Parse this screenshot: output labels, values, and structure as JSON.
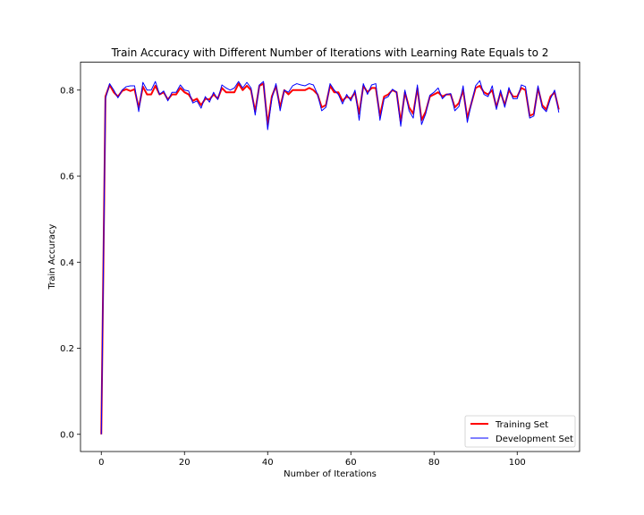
{
  "chart_data": {
    "type": "line",
    "title": "Train Accuracy with Different Number of Iterations with Learning Rate Equals to 2",
    "xlabel": "Number of Iterations",
    "ylabel": "Train Accuracy",
    "xlim": [
      -5,
      115
    ],
    "ylim": [
      -0.04,
      0.865
    ],
    "xticks": [
      0,
      20,
      40,
      60,
      80,
      100
    ],
    "yticks": [
      0.0,
      0.2,
      0.4,
      0.6,
      0.8
    ],
    "xtick_labels": [
      "0",
      "20",
      "40",
      "60",
      "80",
      "100"
    ],
    "ytick_labels": [
      "0.0",
      "0.2",
      "0.4",
      "0.6",
      "0.8"
    ],
    "grid": false,
    "legend_position": "lower-right",
    "x": [
      0,
      1,
      2,
      3,
      4,
      5,
      6,
      7,
      8,
      9,
      10,
      11,
      12,
      13,
      14,
      15,
      16,
      17,
      18,
      19,
      20,
      21,
      22,
      23,
      24,
      25,
      26,
      27,
      28,
      29,
      30,
      31,
      32,
      33,
      34,
      35,
      36,
      37,
      38,
      39,
      40,
      41,
      42,
      43,
      44,
      45,
      46,
      47,
      48,
      49,
      50,
      51,
      52,
      53,
      54,
      55,
      56,
      57,
      58,
      59,
      60,
      61,
      62,
      63,
      64,
      65,
      66,
      67,
      68,
      69,
      70,
      71,
      72,
      73,
      74,
      75,
      76,
      77,
      78,
      79,
      80,
      81,
      82,
      83,
      84,
      85,
      86,
      87,
      88,
      89,
      90,
      91,
      92,
      93,
      94,
      95,
      96,
      97,
      98,
      99,
      100,
      101,
      102,
      103,
      104,
      105,
      106,
      107,
      108,
      109,
      110
    ],
    "series": [
      {
        "name": "Training Set",
        "color": "#ff0000",
        "values": [
          0.0,
          0.785,
          0.812,
          0.795,
          0.785,
          0.798,
          0.802,
          0.798,
          0.802,
          0.758,
          0.808,
          0.79,
          0.79,
          0.81,
          0.79,
          0.795,
          0.778,
          0.79,
          0.79,
          0.805,
          0.795,
          0.79,
          0.775,
          0.78,
          0.765,
          0.78,
          0.778,
          0.79,
          0.78,
          0.805,
          0.795,
          0.795,
          0.795,
          0.815,
          0.8,
          0.81,
          0.8,
          0.75,
          0.81,
          0.815,
          0.72,
          0.785,
          0.81,
          0.76,
          0.8,
          0.79,
          0.8,
          0.8,
          0.8,
          0.8,
          0.805,
          0.8,
          0.79,
          0.76,
          0.765,
          0.81,
          0.795,
          0.795,
          0.775,
          0.785,
          0.78,
          0.795,
          0.745,
          0.81,
          0.795,
          0.805,
          0.805,
          0.74,
          0.785,
          0.79,
          0.8,
          0.795,
          0.725,
          0.795,
          0.76,
          0.745,
          0.805,
          0.73,
          0.75,
          0.785,
          0.79,
          0.795,
          0.785,
          0.79,
          0.79,
          0.76,
          0.77,
          0.8,
          0.735,
          0.77,
          0.805,
          0.81,
          0.795,
          0.79,
          0.8,
          0.76,
          0.795,
          0.765,
          0.8,
          0.785,
          0.785,
          0.805,
          0.8,
          0.74,
          0.745,
          0.805,
          0.765,
          0.755,
          0.785,
          0.795,
          0.755
        ]
      },
      {
        "name": "Development Set",
        "color": "#0000ff",
        "values": [
          0.0,
          0.78,
          0.815,
          0.8,
          0.782,
          0.8,
          0.808,
          0.81,
          0.81,
          0.75,
          0.818,
          0.8,
          0.8,
          0.82,
          0.79,
          0.798,
          0.775,
          0.795,
          0.795,
          0.812,
          0.8,
          0.798,
          0.77,
          0.775,
          0.758,
          0.785,
          0.772,
          0.795,
          0.778,
          0.812,
          0.805,
          0.8,
          0.805,
          0.82,
          0.805,
          0.818,
          0.805,
          0.742,
          0.812,
          0.82,
          0.708,
          0.78,
          0.815,
          0.752,
          0.8,
          0.795,
          0.81,
          0.815,
          0.812,
          0.81,
          0.815,
          0.812,
          0.79,
          0.752,
          0.76,
          0.815,
          0.8,
          0.79,
          0.768,
          0.79,
          0.775,
          0.8,
          0.73,
          0.815,
          0.79,
          0.812,
          0.815,
          0.73,
          0.78,
          0.785,
          0.802,
          0.795,
          0.716,
          0.8,
          0.752,
          0.735,
          0.812,
          0.72,
          0.745,
          0.788,
          0.795,
          0.805,
          0.78,
          0.79,
          0.792,
          0.752,
          0.762,
          0.81,
          0.725,
          0.77,
          0.81,
          0.822,
          0.79,
          0.785,
          0.81,
          0.755,
          0.8,
          0.76,
          0.806,
          0.78,
          0.78,
          0.812,
          0.808,
          0.735,
          0.74,
          0.81,
          0.76,
          0.75,
          0.78,
          0.8,
          0.748
        ]
      }
    ]
  }
}
